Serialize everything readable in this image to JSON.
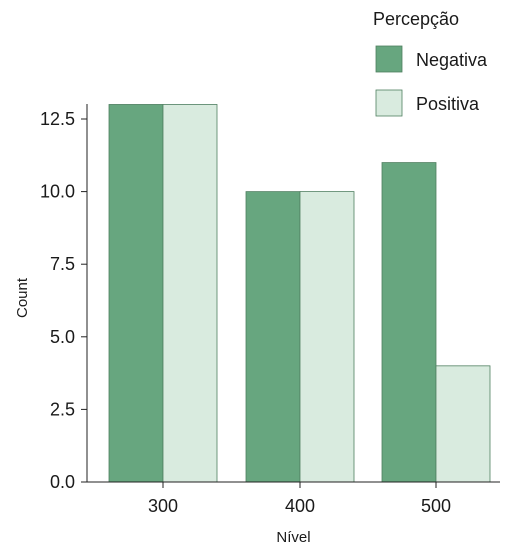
{
  "chart_data": {
    "type": "bar",
    "title": "",
    "xlabel": "Nível",
    "ylabel": "Count",
    "categories": [
      "300",
      "400",
      "500"
    ],
    "series": [
      {
        "name": "Negativa",
        "values": [
          13,
          10,
          11
        ],
        "color": "#67a67f"
      },
      {
        "name": "Positiva",
        "values": [
          13,
          10,
          4
        ],
        "color": "#d9ebdf"
      }
    ],
    "ylim": [
      0,
      13
    ],
    "yticks": [
      "0.0",
      "2.5",
      "5.0",
      "7.5",
      "10.0",
      "12.5"
    ],
    "grid": false,
    "legend": {
      "title": "Percepção",
      "placement": "top-right"
    }
  }
}
